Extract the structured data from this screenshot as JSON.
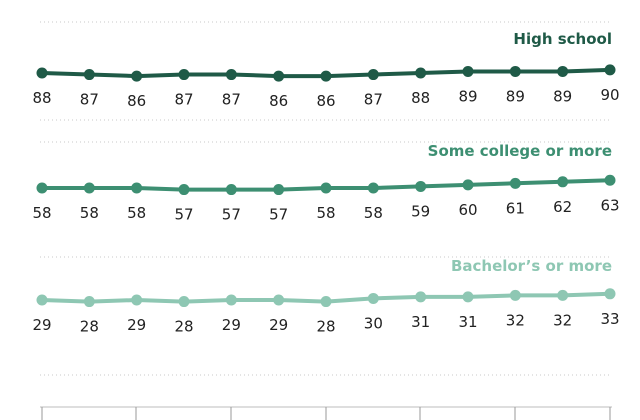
{
  "chart_data": {
    "type": "line",
    "title": "",
    "xlabel": "",
    "ylabel": "",
    "x": [
      "",
      "",
      "",
      "",
      "",
      "",
      "",
      "",
      "",
      "",
      "",
      "",
      ""
    ],
    "ylim": [
      0,
      100
    ],
    "grid": "dotted horizontal gridlines",
    "legend": "inline labels above each series",
    "series": [
      {
        "name": "High school",
        "color": "#1f5a47",
        "values": [
          88,
          87,
          86,
          87,
          87,
          86,
          86,
          87,
          88,
          89,
          89,
          89,
          90
        ]
      },
      {
        "name": "Some college or more",
        "color": "#3d8f72",
        "values": [
          58,
          58,
          58,
          57,
          57,
          57,
          58,
          58,
          59,
          60,
          61,
          62,
          63
        ]
      },
      {
        "name": "Bachelor’s or more",
        "color": "#8ec7b3",
        "values": [
          29,
          28,
          29,
          28,
          29,
          29,
          28,
          30,
          31,
          31,
          32,
          32,
          33
        ]
      }
    ]
  }
}
